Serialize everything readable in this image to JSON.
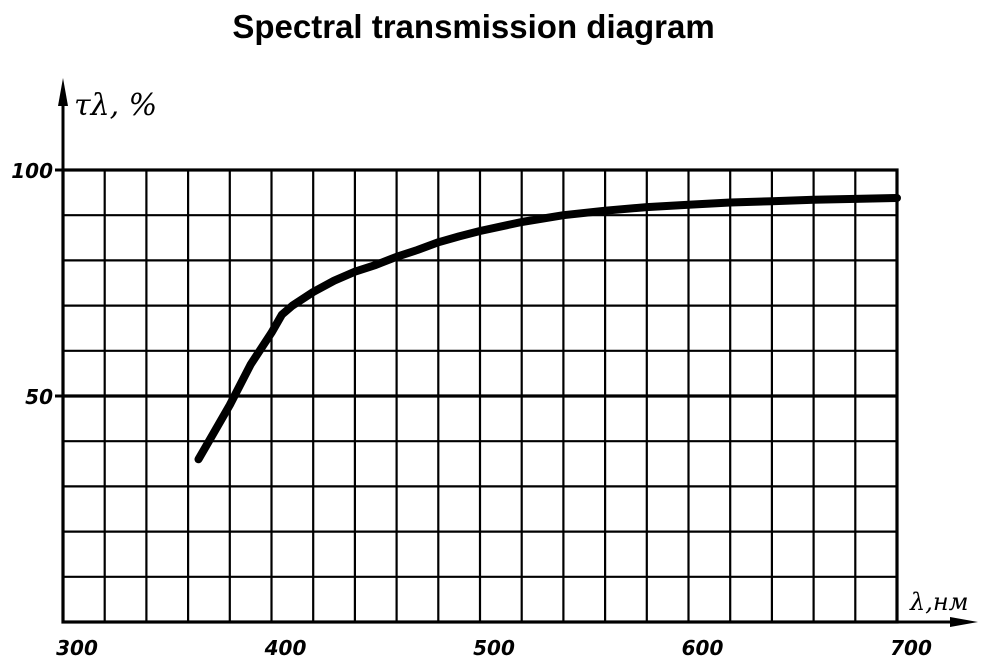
{
  "chart_data": {
    "type": "line",
    "title": "Spectral transmission diagram",
    "xlabel": "λ,нм",
    "ylabel": "τλ, %",
    "xlim": [
      300,
      700
    ],
    "ylim": [
      0,
      100
    ],
    "x_ticks": [
      "300",
      "400",
      "500",
      "600",
      "700"
    ],
    "y_ticks": [
      "100",
      "50"
    ],
    "grid": true,
    "series": [
      {
        "x": [
          365,
          370,
          380,
          390,
          400,
          405,
          410,
          420,
          430,
          440,
          450,
          460,
          470,
          480,
          490,
          500,
          520,
          540,
          560,
          580,
          600,
          620,
          640,
          660,
          680,
          700
        ],
        "y": [
          36,
          40,
          48,
          57,
          64,
          68,
          70,
          73,
          75.5,
          77.5,
          79,
          80.8,
          82.3,
          84,
          85.3,
          86.5,
          88.5,
          90,
          91,
          91.8,
          92.3,
          92.8,
          93.1,
          93.4,
          93.6,
          93.8
        ]
      }
    ]
  }
}
